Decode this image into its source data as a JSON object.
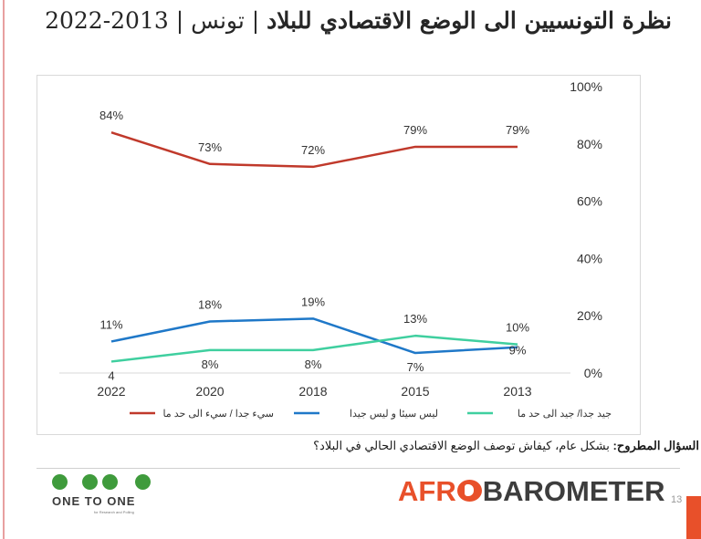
{
  "title": {
    "main": "نظرة التونسيين الى الوضع الاقتصادي للبلاد",
    "rest": "| تونس | 2013-2022"
  },
  "question": {
    "label": "السؤال المطروح:",
    "text": "بشكل عام، كيفاش توصف الوضع الاقتصادي الحالي في البلاد؟"
  },
  "footer": {
    "logo_left": "ONE TO ONE",
    "logo_left_sub": "for Research and Polling",
    "logo_right_part1": "AFR",
    "logo_right_part2": "BAROMETER",
    "page_number": "13"
  },
  "colors": {
    "bad": "#c0392b",
    "neither": "#1f78c8",
    "good": "#3fcf9f",
    "accent": "#e8502a"
  },
  "chart_data": {
    "type": "line",
    "categories": [
      "2022",
      "2020",
      "2018",
      "2015",
      "2013"
    ],
    "ylim": [
      0,
      100
    ],
    "yticks": [
      0,
      20,
      40,
      60,
      80,
      100
    ],
    "y_axis_position": "right",
    "legend_position": "bottom",
    "grid": false,
    "series": [
      {
        "name": "سيء جدا / سيء الى حد ما",
        "color": "#c0392b",
        "values": [
          84,
          73,
          72,
          79,
          79
        ],
        "labels": [
          "84%",
          "73%",
          "72%",
          "79%",
          "79%"
        ]
      },
      {
        "name": "ليس سيئا و ليس جيدا",
        "color": "#1f78c8",
        "values": [
          11,
          18,
          19,
          7,
          9
        ],
        "labels": [
          "11%",
          "18%",
          "19%",
          "7%",
          "9%"
        ]
      },
      {
        "name": "جيد جدا/ جيد الى حد ما",
        "color": "#3fcf9f",
        "values": [
          4,
          8,
          8,
          13,
          10
        ],
        "labels": [
          "4",
          "8%",
          "8%",
          "13%",
          "10%"
        ]
      }
    ]
  }
}
